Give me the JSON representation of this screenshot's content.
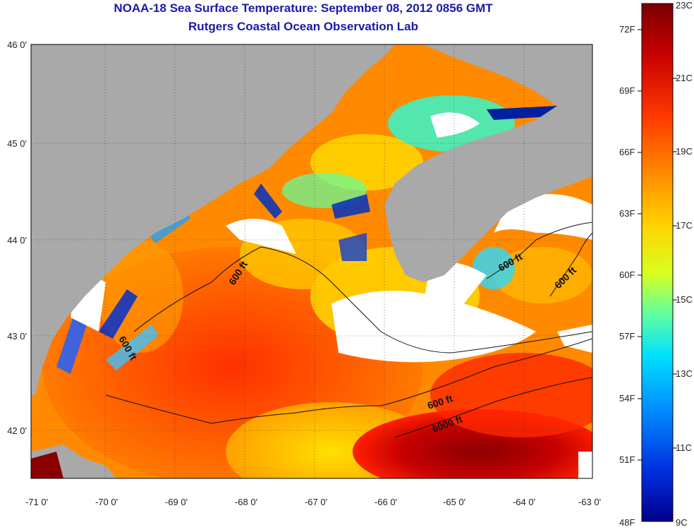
{
  "header": {
    "title": "NOAA-18 Sea Surface Temperature:  September 08, 2012 0856 GMT",
    "subtitle": "Rutgers Coastal Ocean Observation Lab"
  },
  "axes": {
    "lon_ticks": [
      "-71 0'",
      "-70 0'",
      "-69 0'",
      "-68 0'",
      "-67 0'",
      "-66 0'",
      "-65 0'",
      "-64 0'",
      "-63 0'"
    ],
    "lat_ticks": [
      "46 0'",
      "45 0'",
      "44 0'",
      "43 0'",
      "42 0'"
    ]
  },
  "contours": {
    "labels": [
      "600 ft",
      "600 ft",
      "600 ft",
      "600 ft",
      "600 ft",
      "6000 ft"
    ]
  },
  "colorbar": {
    "fahrenheit": [
      "72F",
      "69F",
      "66F",
      "63F",
      "60F",
      "57F",
      "54F",
      "51F",
      "48F"
    ],
    "celsius": [
      "23C",
      "21C",
      "19C",
      "17C",
      "15C",
      "13C",
      "11C",
      "9C"
    ],
    "colors": [
      "#7a0000",
      "#c80000",
      "#ff3a00",
      "#ff8c00",
      "#ffd400",
      "#d8ff20",
      "#60ffa0",
      "#00e0ff",
      "#0090ff",
      "#0030e0",
      "#00008c"
    ]
  },
  "palette": {
    "land": "#a9a9a9",
    "cloud": "#ffffff",
    "title_color": "#1a1aa8"
  }
}
